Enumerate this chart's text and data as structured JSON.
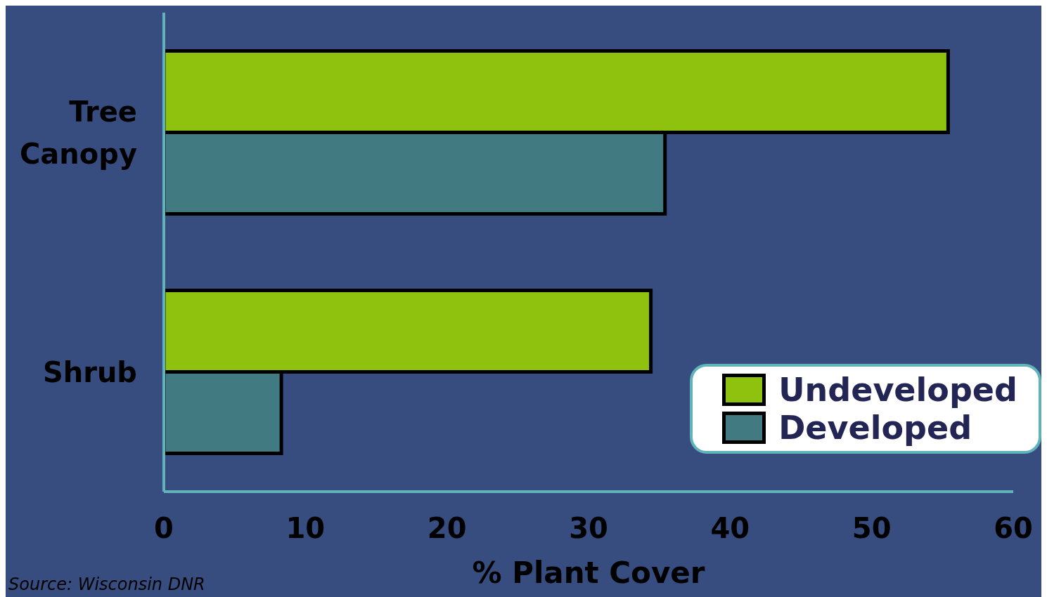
{
  "chart_data": {
    "type": "bar",
    "orientation": "horizontal",
    "categories": [
      "Tree Canopy",
      "Shrub"
    ],
    "series": [
      {
        "name": "Undeveloped",
        "color": "#8fc20f",
        "values": [
          55.4,
          34.4
        ]
      },
      {
        "name": "Developed",
        "color": "#427a82",
        "values": [
          35.4,
          8.3
        ]
      }
    ],
    "xlim": [
      0,
      60
    ],
    "xticks": [
      0,
      10,
      20,
      30,
      40,
      50,
      60
    ],
    "xlabel": "% Plant Cover",
    "legend": "bottom right",
    "annotations": [
      "Source: Wisconsin DNR"
    ]
  }
}
